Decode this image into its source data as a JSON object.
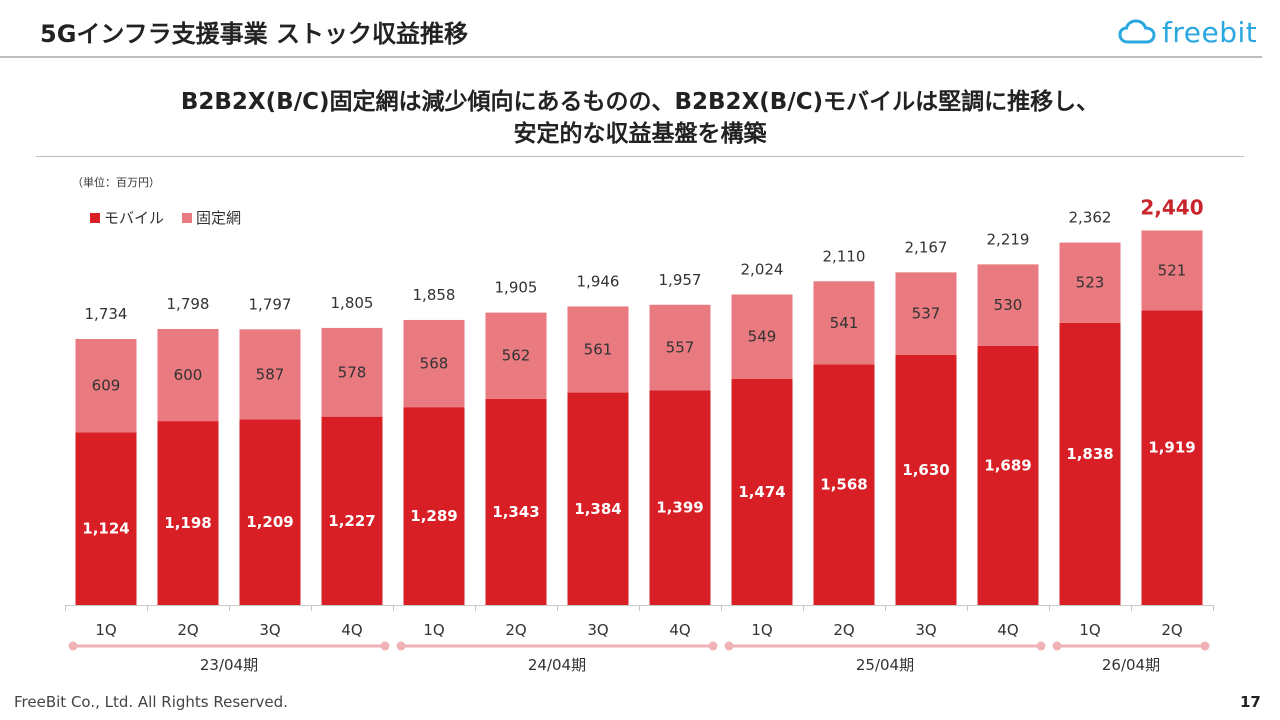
{
  "header": {
    "title": "5Gインフラ支援事業 ストック収益推移",
    "logo_text": "freebit"
  },
  "subtitle": {
    "line1": "B2B2X(B/C)固定網は減少傾向にあるものの、B2B2X(B/C)モバイルは堅調に推移し、",
    "line2": "安定的な収益基盤を構築"
  },
  "footer": {
    "copyright": "FreeBit Co., Ltd. All Rights Reserved.",
    "page_number": "17"
  },
  "colors": {
    "mobile": "#d81f26",
    "fixed": "#e87a80",
    "highlight": "#c8262c",
    "logo": "#2aa7e0",
    "period_line": "#f0b2b5"
  },
  "chart_data": {
    "type": "bar",
    "stacked": true,
    "unit_label": "（単位：百万円）",
    "categories": [
      "1Q",
      "2Q",
      "3Q",
      "4Q",
      "1Q",
      "2Q",
      "3Q",
      "4Q",
      "1Q",
      "2Q",
      "3Q",
      "4Q",
      "1Q",
      "2Q"
    ],
    "series": [
      {
        "name": "モバイル",
        "values": [
          1124,
          1198,
          1209,
          1227,
          1289,
          1343,
          1384,
          1399,
          1474,
          1568,
          1630,
          1689,
          1838,
          1919
        ],
        "labels": [
          "1,124",
          "1,198",
          "1,209",
          "1,227",
          "1,289",
          "1,343",
          "1,384",
          "1,399",
          "1,474",
          "1,568",
          "1,630",
          "1,689",
          "1,838",
          "1,919"
        ]
      },
      {
        "name": "固定網",
        "values": [
          609,
          600,
          587,
          578,
          568,
          562,
          561,
          557,
          549,
          541,
          537,
          530,
          523,
          521
        ],
        "labels": [
          "609",
          "600",
          "587",
          "578",
          "568",
          "562",
          "561",
          "557",
          "549",
          "541",
          "537",
          "530",
          "523",
          "521"
        ]
      }
    ],
    "totals": [
      "1,734",
      "1,798",
      "1,797",
      "1,805",
      "1,858",
      "1,905",
      "1,946",
      "1,957",
      "2,024",
      "2,110",
      "2,167",
      "2,219",
      "2,362",
      "2,440"
    ],
    "total_values": [
      1734,
      1798,
      1797,
      1805,
      1858,
      1905,
      1946,
      1957,
      2024,
      2110,
      2167,
      2219,
      2362,
      2440
    ],
    "highlight_index": 13,
    "periods": [
      {
        "label": "23/04期",
        "start": 0,
        "end": 3
      },
      {
        "label": "24/04期",
        "start": 4,
        "end": 7
      },
      {
        "label": "25/04期",
        "start": 8,
        "end": 11
      },
      {
        "label": "26/04期",
        "start": 12,
        "end": 13
      }
    ],
    "ylim": [
      0,
      2550
    ],
    "legend_position": "top-left"
  }
}
